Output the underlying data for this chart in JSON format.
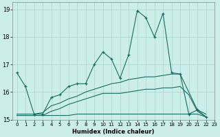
{
  "xlabel": "Humidex (Indice chaleur)",
  "background_color": "#cceee8",
  "grid_color": "#aad4ce",
  "line_color": "#1a6b60",
  "x": [
    0,
    1,
    2,
    3,
    4,
    5,
    6,
    7,
    8,
    9,
    10,
    11,
    12,
    13,
    14,
    15,
    16,
    17,
    18,
    19,
    20,
    21,
    22,
    23
  ],
  "line1": [
    16.7,
    16.2,
    15.2,
    15.2,
    15.8,
    15.9,
    16.2,
    16.3,
    16.3,
    17.0,
    17.45,
    17.2,
    16.5,
    17.35,
    18.95,
    18.7,
    18.0,
    18.85,
    16.7,
    16.65,
    15.2,
    15.35,
    15.1,
    null
  ],
  "line2": [
    15.15,
    15.15,
    15.15,
    15.15,
    15.15,
    15.15,
    15.15,
    15.2,
    15.2,
    15.2,
    15.2,
    15.2,
    15.2,
    15.2,
    15.2,
    15.2,
    15.2,
    15.2,
    15.2,
    15.2,
    15.2,
    15.2,
    15.1,
    null
  ],
  "line3": [
    15.2,
    15.2,
    15.2,
    15.25,
    15.5,
    15.6,
    15.75,
    15.85,
    16.0,
    16.1,
    16.2,
    16.3,
    16.35,
    16.45,
    16.5,
    16.55,
    16.55,
    16.6,
    16.65,
    16.65,
    16.0,
    15.35,
    15.2,
    null
  ],
  "line4": [
    15.15,
    15.15,
    15.15,
    15.15,
    15.3,
    15.4,
    15.55,
    15.65,
    15.75,
    15.85,
    15.95,
    15.95,
    15.95,
    16.0,
    16.05,
    16.1,
    16.1,
    16.15,
    16.15,
    16.2,
    15.9,
    15.3,
    15.1,
    null
  ],
  "ylim": [
    15.0,
    19.25
  ],
  "xlim": [
    -0.5,
    23.0
  ],
  "yticks": [
    15,
    16,
    17,
    18,
    19
  ],
  "xticks": [
    0,
    1,
    2,
    3,
    4,
    5,
    6,
    7,
    8,
    9,
    10,
    11,
    12,
    13,
    14,
    15,
    16,
    17,
    18,
    19,
    20,
    21,
    22,
    23
  ]
}
